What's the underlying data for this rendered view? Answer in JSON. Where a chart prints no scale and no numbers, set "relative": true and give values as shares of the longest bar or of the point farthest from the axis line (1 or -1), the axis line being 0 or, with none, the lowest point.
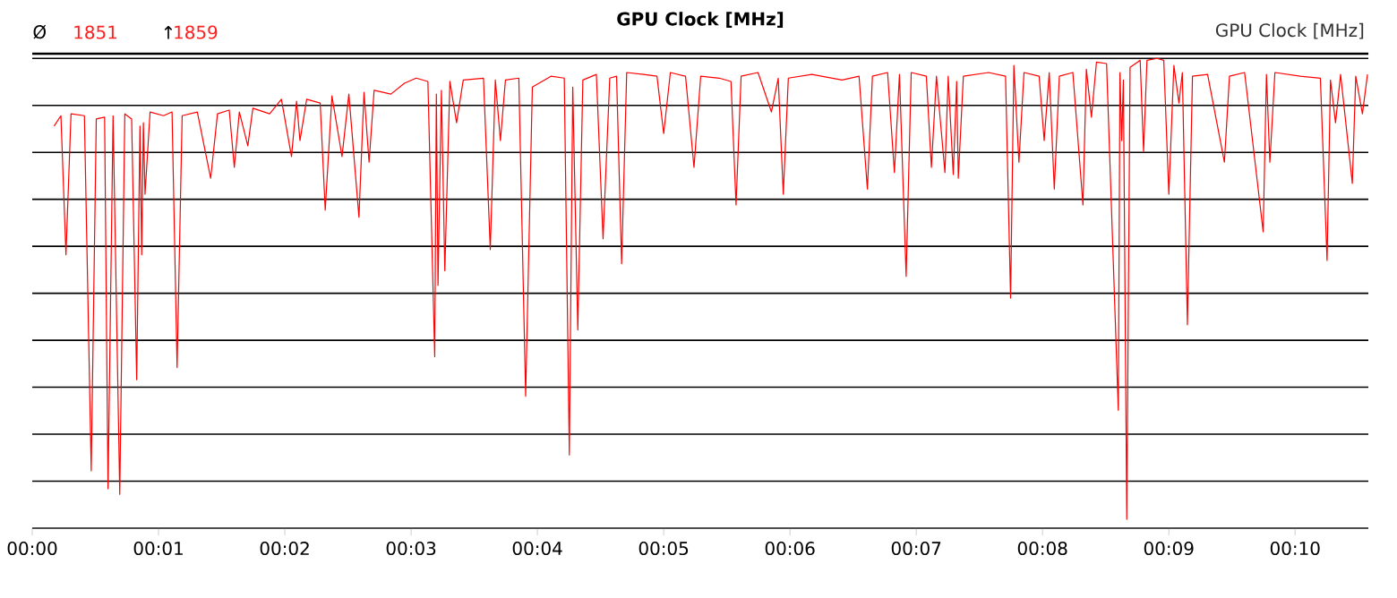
{
  "chart_data": {
    "type": "line",
    "title": "GPU Clock [MHz]",
    "annotations": [
      "Ø",
      "1851",
      "↑",
      "1859",
      "GPU Clock [MHz]"
    ],
    "relative": true,
    "color": "#ff0000",
    "grid": "y",
    "xlim": [
      0,
      10.58
    ],
    "xticks": [
      {
        "value": 0,
        "label": "00:00"
      },
      {
        "value": 1,
        "label": "00:01"
      },
      {
        "value": 2,
        "label": "00:02"
      },
      {
        "value": 3,
        "label": "00:03"
      },
      {
        "value": 4,
        "label": "00:04"
      },
      {
        "value": 5,
        "label": "00:05"
      },
      {
        "value": 6,
        "label": "00:06"
      },
      {
        "value": 7,
        "label": "00:07"
      },
      {
        "value": 8,
        "label": "00:08"
      },
      {
        "value": 9,
        "label": "00:09"
      },
      {
        "value": 10,
        "label": "00:10"
      }
    ],
    "x": [
      0.173,
      0.227,
      0.267,
      0.307,
      0.413,
      0.467,
      0.507,
      0.573,
      0.6,
      0.64,
      0.693,
      0.733,
      0.787,
      0.827,
      0.853,
      0.867,
      0.88,
      0.893,
      0.933,
      1.04,
      1.107,
      1.147,
      1.187,
      1.307,
      1.413,
      1.467,
      1.56,
      1.6,
      1.64,
      1.707,
      1.747,
      1.88,
      1.973,
      2.053,
      2.093,
      2.12,
      2.173,
      2.28,
      2.32,
      2.373,
      2.453,
      2.507,
      2.587,
      2.627,
      2.667,
      2.707,
      2.84,
      2.947,
      3.04,
      3.133,
      3.187,
      3.2,
      3.213,
      3.24,
      3.267,
      3.307,
      3.36,
      3.413,
      3.573,
      3.627,
      3.667,
      3.707,
      3.747,
      3.853,
      3.907,
      3.96,
      4.107,
      4.213,
      4.253,
      4.28,
      4.32,
      4.36,
      4.467,
      4.52,
      4.573,
      4.627,
      4.667,
      4.707,
      4.84,
      4.947,
      5.0,
      5.053,
      5.173,
      5.24,
      5.293,
      5.44,
      5.533,
      5.573,
      5.613,
      5.747,
      5.853,
      5.907,
      5.947,
      5.987,
      6.173,
      6.413,
      6.547,
      6.613,
      6.653,
      6.773,
      6.827,
      6.867,
      6.92,
      6.96,
      7.08,
      7.12,
      7.16,
      7.227,
      7.253,
      7.293,
      7.32,
      7.333,
      7.373,
      7.573,
      7.707,
      7.747,
      7.773,
      7.813,
      7.853,
      7.973,
      8.013,
      8.053,
      8.093,
      8.133,
      8.24,
      8.32,
      8.347,
      8.387,
      8.427,
      8.507,
      8.6,
      8.613,
      8.627,
      8.64,
      8.667,
      8.693,
      8.773,
      8.8,
      8.827,
      8.907,
      8.96,
      9.0,
      9.04,
      9.08,
      9.107,
      9.147,
      9.187,
      9.307,
      9.44,
      9.48,
      9.6,
      9.747,
      9.773,
      9.8,
      9.84,
      10.04,
      10.2,
      10.253,
      10.28,
      10.32,
      10.36,
      10.453,
      10.48,
      10.533,
      10.573
    ],
    "values": [
      0.856,
      0.878,
      0.582,
      0.882,
      0.878,
      0.122,
      0.871,
      0.875,
      0.084,
      0.878,
      0.072,
      0.882,
      0.871,
      0.316,
      0.856,
      0.582,
      0.863,
      0.711,
      0.886,
      0.878,
      0.886,
      0.342,
      0.878,
      0.886,
      0.745,
      0.882,
      0.89,
      0.768,
      0.886,
      0.814,
      0.894,
      0.882,
      0.913,
      0.791,
      0.909,
      0.825,
      0.913,
      0.905,
      0.677,
      0.92,
      0.791,
      0.924,
      0.662,
      0.928,
      0.779,
      0.932,
      0.924,
      0.947,
      0.958,
      0.951,
      0.365,
      0.924,
      0.517,
      0.932,
      0.548,
      0.951,
      0.863,
      0.954,
      0.958,
      0.593,
      0.954,
      0.825,
      0.954,
      0.958,
      0.281,
      0.939,
      0.962,
      0.958,
      0.156,
      0.939,
      0.422,
      0.954,
      0.966,
      0.616,
      0.958,
      0.962,
      0.563,
      0.97,
      0.966,
      0.962,
      0.84,
      0.97,
      0.962,
      0.768,
      0.962,
      0.958,
      0.951,
      0.688,
      0.962,
      0.97,
      0.886,
      0.958,
      0.711,
      0.958,
      0.966,
      0.954,
      0.962,
      0.722,
      0.962,
      0.97,
      0.757,
      0.966,
      0.536,
      0.97,
      0.962,
      0.768,
      0.962,
      0.757,
      0.962,
      0.753,
      0.951,
      0.745,
      0.962,
      0.97,
      0.962,
      0.49,
      0.985,
      0.779,
      0.97,
      0.962,
      0.825,
      0.97,
      0.722,
      0.962,
      0.97,
      0.688,
      0.977,
      0.875,
      0.992,
      0.989,
      0.251,
      0.97,
      0.825,
      0.954,
      0.019,
      0.981,
      0.996,
      0.802,
      0.996,
      1.0,
      0.996,
      0.711,
      0.985,
      0.905,
      0.97,
      0.433,
      0.962,
      0.966,
      0.779,
      0.962,
      0.97,
      0.631,
      0.966,
      0.779,
      0.97,
      0.962,
      0.958,
      0.57,
      0.954,
      0.863,
      0.966,
      0.734,
      0.962,
      0.882,
      0.966
    ]
  }
}
